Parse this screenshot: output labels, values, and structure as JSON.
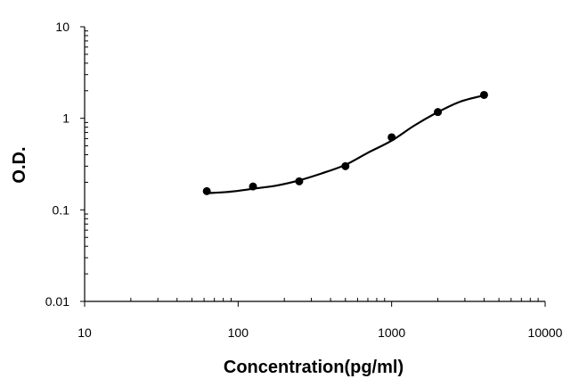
{
  "chart_data": {
    "type": "scatter",
    "title": "",
    "xlabel": "Concentration(pg/ml)",
    "ylabel": "O.D.",
    "xscale": "log",
    "yscale": "log",
    "xlim": [
      10,
      10000
    ],
    "ylim": [
      0.01,
      10
    ],
    "x_ticks": [
      "10",
      "100",
      "1000",
      "10000"
    ],
    "y_ticks": [
      "0.01",
      "0.1",
      "1",
      "10"
    ],
    "grid": false,
    "legend": "none",
    "colors": {
      "points": "#000000",
      "curve": "#000000",
      "axis": "#000000"
    },
    "series": [
      {
        "x": [
          62.5,
          125,
          250,
          500,
          1000,
          2000,
          4000
        ],
        "y": [
          0.16,
          0.18,
          0.205,
          0.3,
          0.62,
          1.17,
          1.8
        ]
      }
    ],
    "fit_curve": {
      "x": [
        62.5,
        90,
        125,
        180,
        250,
        350,
        500,
        700,
        1000,
        1400,
        2000,
        2800,
        4000
      ],
      "y": [
        0.152,
        0.158,
        0.17,
        0.185,
        0.21,
        0.25,
        0.31,
        0.42,
        0.57,
        0.83,
        1.17,
        1.52,
        1.78
      ]
    }
  }
}
